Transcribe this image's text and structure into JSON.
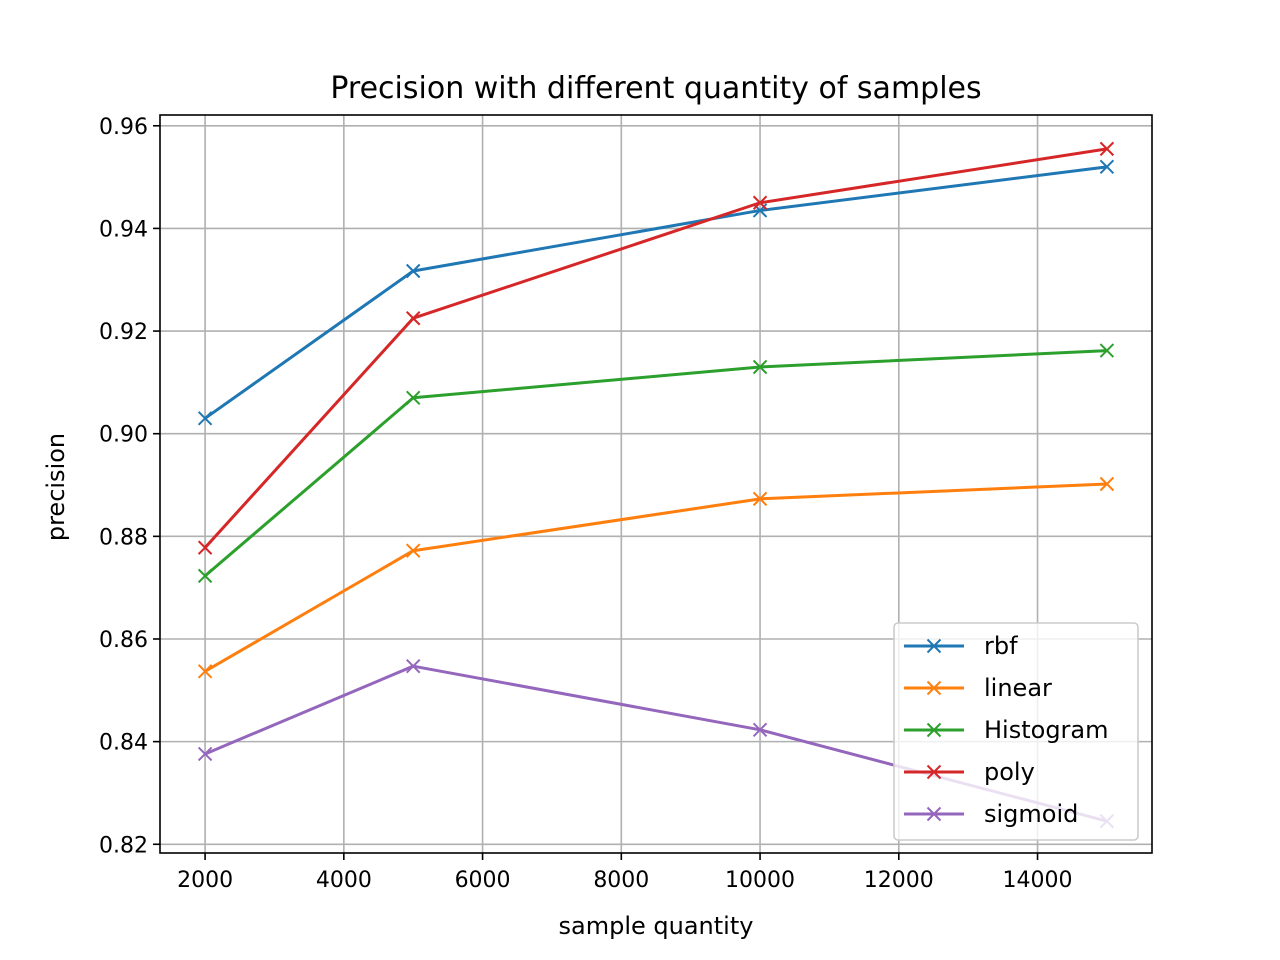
{
  "chart_data": {
    "type": "line",
    "title": "Precision with different quantity of samples",
    "xlabel": "sample quantity",
    "ylabel": "precision",
    "x": [
      2000,
      5000,
      10000,
      15000
    ],
    "xlim": [
      1350,
      15650
    ],
    "ylim": [
      0.8183,
      0.9621
    ],
    "xticks": [
      2000,
      4000,
      6000,
      8000,
      10000,
      12000,
      14000
    ],
    "yticks": [
      0.82,
      0.84,
      0.86,
      0.88,
      0.9,
      0.92,
      0.94,
      0.96
    ],
    "xtick_labels": [
      "2000",
      "4000",
      "6000",
      "8000",
      "10000",
      "12000",
      "14000"
    ],
    "ytick_labels": [
      "0.82",
      "0.84",
      "0.86",
      "0.88",
      "0.90",
      "0.92",
      "0.94",
      "0.96"
    ],
    "grid": true,
    "legend_position": "lower-right",
    "marker": "x",
    "series": [
      {
        "name": "rbf",
        "color": "#1f77b4",
        "values": [
          0.903,
          0.9317,
          0.9435,
          0.952
        ]
      },
      {
        "name": "linear",
        "color": "#ff7f0e",
        "values": [
          0.8537,
          0.8772,
          0.8873,
          0.8902
        ]
      },
      {
        "name": "Histogram",
        "color": "#2ca02c",
        "values": [
          0.8723,
          0.907,
          0.913,
          0.9162
        ]
      },
      {
        "name": "poly",
        "color": "#d62728",
        "values": [
          0.8778,
          0.9225,
          0.945,
          0.9555
        ]
      },
      {
        "name": "sigmoid",
        "color": "#9467bd",
        "values": [
          0.8376,
          0.8547,
          0.8423,
          0.8245
        ]
      }
    ]
  }
}
